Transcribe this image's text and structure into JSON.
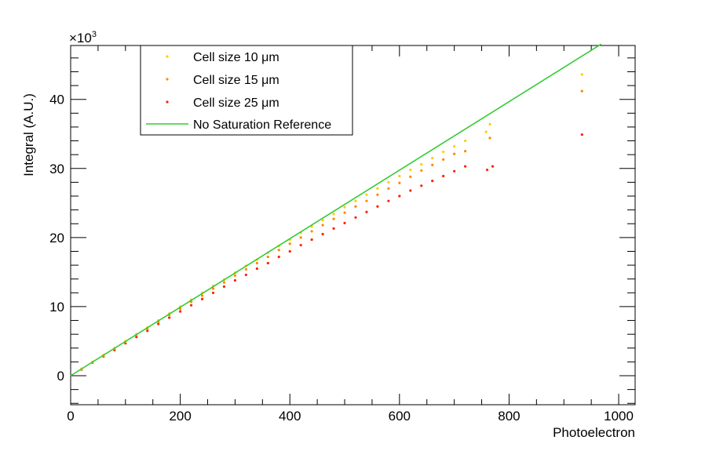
{
  "chart_data": {
    "type": "scatter",
    "xlabel": "Photoelectron",
    "ylabel": "Integral (A.U.)",
    "y_multiplier_label": "×10",
    "y_multiplier_exponent": "3",
    "xlim": [
      0,
      1030
    ],
    "ylim": [
      -4.2,
      47.8
    ],
    "x_ticks": [
      0,
      200,
      400,
      600,
      800,
      1000
    ],
    "x_tick_labels": [
      "0",
      "200",
      "400",
      "600",
      "800",
      "1000"
    ],
    "y_ticks": [
      0,
      10,
      20,
      30,
      40
    ],
    "y_tick_labels": [
      "0",
      "10",
      "20",
      "30",
      "40"
    ],
    "grid": false,
    "legend_placement": "top-left",
    "series": [
      {
        "name": "Cell size 10 μm",
        "kind": "points",
        "color": "#ffcc00",
        "points": [
          [
            20,
            1.0
          ],
          [
            40,
            2.0
          ],
          [
            60,
            3.0
          ],
          [
            80,
            4.0
          ],
          [
            100,
            5.0
          ],
          [
            120,
            6.0
          ],
          [
            140,
            7.0
          ],
          [
            160,
            8.0
          ],
          [
            180,
            9.0
          ],
          [
            200,
            10.0
          ],
          [
            220,
            11.0
          ],
          [
            240,
            12.0
          ],
          [
            260,
            13.0
          ],
          [
            280,
            13.9
          ],
          [
            300,
            14.9
          ],
          [
            320,
            15.9
          ],
          [
            340,
            16.8
          ],
          [
            360,
            17.8
          ],
          [
            380,
            18.8
          ],
          [
            400,
            19.7
          ],
          [
            420,
            20.7
          ],
          [
            440,
            21.6
          ],
          [
            460,
            22.5
          ],
          [
            480,
            23.4
          ],
          [
            500,
            24.4
          ],
          [
            520,
            25.3
          ],
          [
            540,
            26.2
          ],
          [
            560,
            27.1
          ],
          [
            580,
            28.0
          ],
          [
            600,
            28.9
          ],
          [
            620,
            29.8
          ],
          [
            640,
            30.6
          ],
          [
            660,
            31.5
          ],
          [
            680,
            32.4
          ],
          [
            700,
            33.2
          ],
          [
            720,
            34.0
          ],
          [
            758,
            35.3
          ],
          [
            765,
            36.4
          ],
          [
            933,
            43.6
          ]
        ]
      },
      {
        "name": "Cell size 15 μm",
        "kind": "points",
        "color": "#ff8800",
        "points": [
          [
            20,
            1.0
          ],
          [
            40,
            2.0
          ],
          [
            60,
            2.9
          ],
          [
            80,
            3.9
          ],
          [
            100,
            4.9
          ],
          [
            120,
            5.9
          ],
          [
            140,
            6.8
          ],
          [
            160,
            7.8
          ],
          [
            180,
            8.8
          ],
          [
            200,
            9.7
          ],
          [
            220,
            10.7
          ],
          [
            240,
            11.6
          ],
          [
            260,
            12.6
          ],
          [
            280,
            13.5
          ],
          [
            300,
            14.5
          ],
          [
            320,
            15.4
          ],
          [
            340,
            16.3
          ],
          [
            360,
            17.2
          ],
          [
            380,
            18.2
          ],
          [
            400,
            19.1
          ],
          [
            420,
            20.0
          ],
          [
            440,
            20.9
          ],
          [
            460,
            21.8
          ],
          [
            480,
            22.7
          ],
          [
            500,
            23.6
          ],
          [
            520,
            24.5
          ],
          [
            540,
            25.3
          ],
          [
            560,
            26.2
          ],
          [
            580,
            27.1
          ],
          [
            600,
            27.9
          ],
          [
            620,
            28.8
          ],
          [
            640,
            29.7
          ],
          [
            660,
            30.5
          ],
          [
            680,
            31.3
          ],
          [
            700,
            32.1
          ],
          [
            720,
            32.5
          ],
          [
            765,
            34.4
          ],
          [
            933,
            41.2
          ]
        ]
      },
      {
        "name": "Cell size 25 μm",
        "kind": "points",
        "color": "#ff2200",
        "points": [
          [
            20,
            0.9
          ],
          [
            40,
            1.9
          ],
          [
            60,
            2.8
          ],
          [
            80,
            3.7
          ],
          [
            100,
            4.7
          ],
          [
            120,
            5.6
          ],
          [
            140,
            6.5
          ],
          [
            160,
            7.5
          ],
          [
            180,
            8.4
          ],
          [
            200,
            9.3
          ],
          [
            220,
            10.2
          ],
          [
            240,
            11.1
          ],
          [
            260,
            12.0
          ],
          [
            280,
            12.9
          ],
          [
            300,
            13.8
          ],
          [
            320,
            14.6
          ],
          [
            340,
            15.5
          ],
          [
            360,
            16.3
          ],
          [
            380,
            17.2
          ],
          [
            400,
            18.0
          ],
          [
            420,
            18.9
          ],
          [
            440,
            19.7
          ],
          [
            460,
            20.5
          ],
          [
            480,
            21.3
          ],
          [
            500,
            22.1
          ],
          [
            520,
            22.9
          ],
          [
            540,
            23.7
          ],
          [
            560,
            24.5
          ],
          [
            580,
            25.3
          ],
          [
            600,
            26.0
          ],
          [
            620,
            26.8
          ],
          [
            640,
            27.5
          ],
          [
            660,
            28.2
          ],
          [
            680,
            28.9
          ],
          [
            700,
            29.6
          ],
          [
            720,
            30.3
          ],
          [
            760,
            29.8
          ],
          [
            770,
            30.3
          ],
          [
            933,
            34.9
          ]
        ]
      },
      {
        "name": "No Saturation Reference",
        "kind": "line",
        "color": "#33cc33",
        "points": [
          [
            0,
            0
          ],
          [
            968,
            48.0
          ]
        ]
      }
    ]
  }
}
